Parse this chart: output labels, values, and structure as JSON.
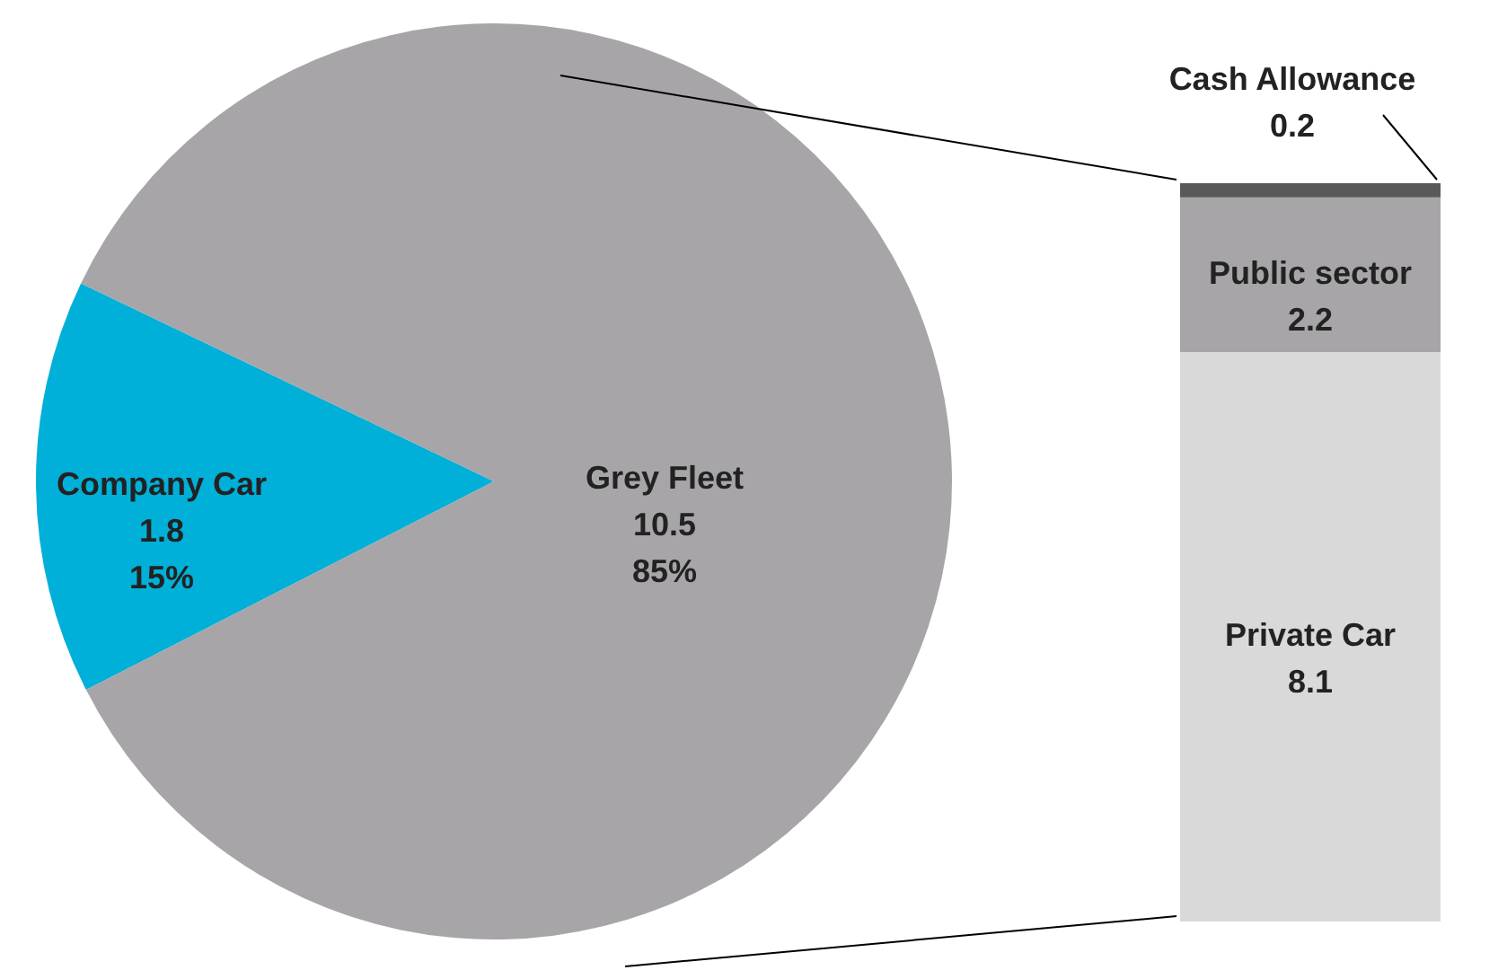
{
  "chart_data": [
    {
      "type": "pie",
      "categories": [
        "Company Car",
        "Grey Fleet"
      ],
      "values": [
        1.8,
        10.5
      ],
      "colors": [
        "#00b0d8",
        "#a7a5a8"
      ],
      "value_labels": [
        "1.8\n15%",
        "10.5\n85%"
      ]
    },
    {
      "type": "bar",
      "stacked": true,
      "categories": [
        null
      ],
      "data_labels": true,
      "series": [
        {
          "name": "Private Car",
          "color": "#d9d9d9",
          "values": [
            8.1
          ]
        },
        {
          "name": "Public sector",
          "color": "#a7a5a8",
          "values": [
            2.2
          ]
        },
        {
          "name": "Cash Allowance",
          "color": "#595959",
          "values": [
            0.2
          ]
        }
      ]
    }
  ]
}
